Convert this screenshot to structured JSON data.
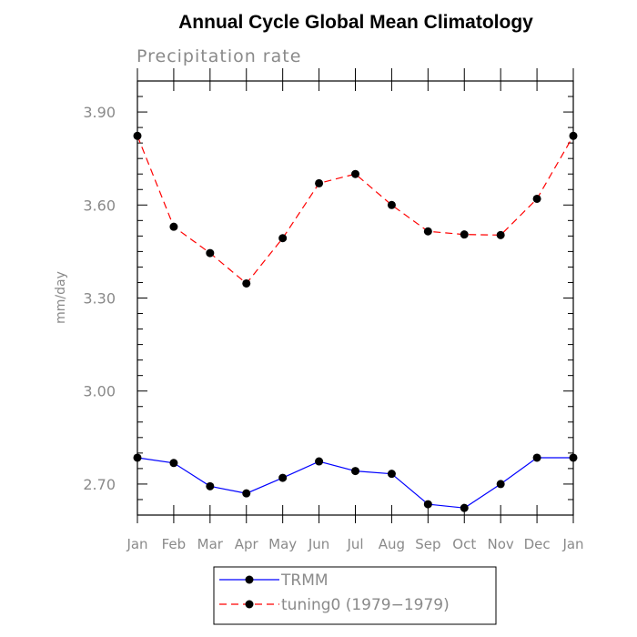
{
  "chart_data": {
    "type": "line",
    "title": "Annual Cycle Global Mean Climatology",
    "subtitle": "Precipitation rate",
    "xlabel": "",
    "ylabel": "mm/day",
    "categories": [
      "Jan",
      "Feb",
      "Mar",
      "Apr",
      "May",
      "Jun",
      "Jul",
      "Aug",
      "Sep",
      "Oct",
      "Nov",
      "Dec",
      "Jan"
    ],
    "ylim": [
      2.6,
      4.0
    ],
    "yticks": [
      2.7,
      3.0,
      3.3,
      3.6,
      3.9
    ],
    "ytick_labels": [
      "2.70",
      "3.00",
      "3.30",
      "3.60",
      "3.90"
    ],
    "grid": false,
    "legend_position": "bottom",
    "series": [
      {
        "name": "TRMM",
        "color": "#0000ff",
        "line_style": "solid",
        "marker": "filled-circle",
        "values": [
          2.785,
          2.768,
          2.693,
          2.67,
          2.72,
          2.773,
          2.742,
          2.733,
          2.635,
          2.623,
          2.7,
          2.785,
          2.785
        ]
      },
      {
        "name": "tuning0 (1979−1979)",
        "color": "#ff0000",
        "line_style": "dashed",
        "marker": "filled-circle",
        "values": [
          3.823,
          3.53,
          3.445,
          3.347,
          3.493,
          3.67,
          3.7,
          3.6,
          3.515,
          3.505,
          3.503,
          3.62,
          3.823
        ]
      }
    ]
  }
}
